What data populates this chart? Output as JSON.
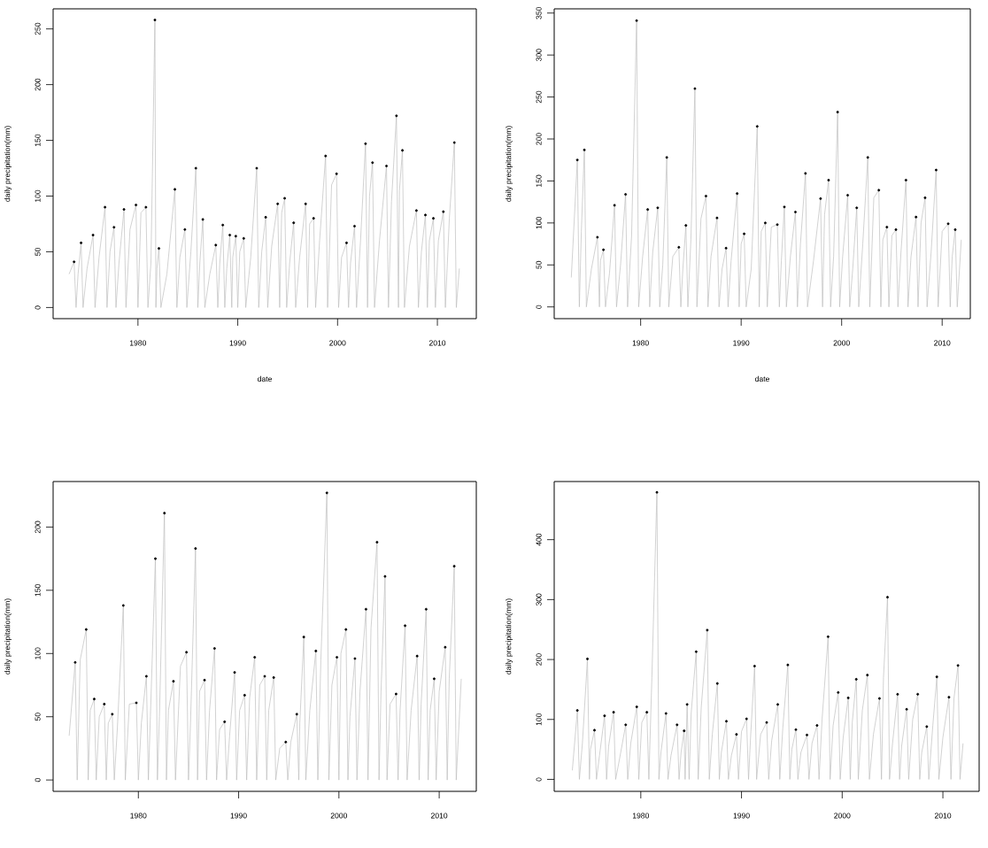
{
  "chart_data": [
    {
      "type": "line",
      "xlabel": "date",
      "ylabel": "daily precipitation(mm)",
      "xlim": [
        1971.5,
        2013.9
      ],
      "ylim": [
        -10,
        268
      ],
      "xticks": [
        1980,
        1990,
        2000,
        2010
      ],
      "yticks": [
        0,
        50,
        100,
        150,
        200,
        250
      ],
      "series": [
        {
          "color": "#bebebe",
          "x": [
            1973.1,
            1973.6,
            1973.8,
            1974.0,
            1974.3,
            1974.5,
            1974.9,
            1975.5,
            1975.7,
            1976.1,
            1976.7,
            1976.9,
            1977.2,
            1977.6,
            1977.8,
            1978.1,
            1978.6,
            1978.8,
            1979.2,
            1979.8,
            1980.0,
            1980.3,
            1980.8,
            1981.0,
            1981.3,
            1981.7,
            1981.8,
            1981.9,
            1982.1,
            1982.3,
            1982.9,
            1983.7,
            1983.9,
            1984.2,
            1984.7,
            1984.9,
            1985.3,
            1985.8,
            1986.0,
            1986.2,
            1986.5,
            1986.7,
            1987.2,
            1987.8,
            1988.0,
            1988.2,
            1988.5,
            1988.7,
            1988.9,
            1989.2,
            1989.4,
            1989.5,
            1989.8,
            1990.0,
            1990.2,
            1990.6,
            1990.8,
            1991.3,
            1991.9,
            1992.1,
            1992.4,
            1992.8,
            1993.0,
            1993.4,
            1994.0,
            1994.2,
            1994.4,
            1994.7,
            1994.9,
            1995.2,
            1995.6,
            1995.8,
            1996.2,
            1996.8,
            1997.0,
            1997.2,
            1997.6,
            1997.8,
            1998.2,
            1998.8,
            1999.0,
            1999.4,
            1999.9,
            2000.1,
            2000.4,
            2000.9,
            2001.1,
            2001.3,
            2001.7,
            2001.9,
            2002.3,
            2002.8,
            2003.0,
            2003.2,
            2003.5,
            2003.7,
            2004.2,
            2004.9,
            2005.1,
            2005.4,
            2005.9,
            2006.1,
            2006.2,
            2006.5,
            2006.7,
            2007.2,
            2007.9,
            2008.1,
            2008.4,
            2008.8,
            2009.0,
            2009.2,
            2009.6,
            2009.8,
            2010.1,
            2010.6,
            2010.8,
            2011.2,
            2011.7,
            2011.9,
            2012.2
          ],
          "values": [
            30,
            41,
            0,
            30,
            58,
            0,
            35,
            65,
            0,
            45,
            90,
            0,
            50,
            72,
            0,
            40,
            88,
            0,
            70,
            92,
            0,
            85,
            90,
            0,
            40,
            258,
            0,
            35,
            53,
            0,
            30,
            106,
            0,
            45,
            70,
            0,
            50,
            125,
            0,
            40,
            79,
            0,
            30,
            56,
            0,
            40,
            74,
            0,
            35,
            65,
            0,
            45,
            64,
            0,
            50,
            62,
            0,
            45,
            125,
            0,
            50,
            81,
            0,
            55,
            93,
            0,
            85,
            98,
            0,
            40,
            76,
            0,
            45,
            93,
            0,
            75,
            80,
            0,
            60,
            136,
            0,
            110,
            120,
            0,
            45,
            58,
            0,
            40,
            73,
            0,
            60,
            147,
            0,
            100,
            130,
            0,
            60,
            127,
            0,
            95,
            172,
            0,
            105,
            141,
            0,
            55,
            87,
            0,
            50,
            83,
            0,
            60,
            80,
            0,
            60,
            86,
            0,
            80,
            148,
            0,
            35
          ]
        },
        {
          "type": "scatter",
          "marker": "circle",
          "color": "#000000",
          "x": [
            1973.6,
            1974.3,
            1975.5,
            1976.7,
            1977.6,
            1978.6,
            1979.8,
            1980.8,
            1981.7,
            1982.1,
            1983.7,
            1984.7,
            1985.8,
            1986.5,
            1987.8,
            1988.5,
            1989.2,
            1989.8,
            1990.6,
            1991.9,
            1992.8,
            1994.0,
            1994.7,
            1995.6,
            1996.8,
            1997.6,
            1998.8,
            1999.9,
            2000.9,
            2001.7,
            2002.8,
            2003.5,
            2004.9,
            2005.9,
            2006.5,
            2007.9,
            2008.8,
            2009.6,
            2010.6,
            2011.7
          ],
          "values": [
            41,
            58,
            65,
            90,
            72,
            88,
            92,
            90,
            258,
            53,
            106,
            70,
            125,
            79,
            56,
            74,
            65,
            64,
            62,
            125,
            81,
            93,
            98,
            76,
            93,
            80,
            136,
            120,
            58,
            73,
            147,
            130,
            127,
            172,
            141,
            87,
            83,
            80,
            86,
            148
          ]
        }
      ]
    },
    {
      "type": "line",
      "xlabel": "date",
      "ylabel": "daily precipitation(mm)",
      "xlim": [
        1971.4,
        2012.8
      ],
      "ylim": [
        -14,
        355
      ],
      "xticks": [
        1980,
        1990,
        2000,
        2010
      ],
      "yticks": [
        0,
        50,
        100,
        150,
        200,
        250,
        300,
        350
      ],
      "series": [
        {
          "color": "#bebebe",
          "x": [
            1973.1,
            1973.7,
            1973.9,
            1974.1,
            1974.4,
            1974.6,
            1975.1,
            1975.7,
            1975.9,
            1976.0,
            1976.3,
            1976.5,
            1976.9,
            1977.4,
            1977.6,
            1978.0,
            1978.5,
            1978.7,
            1979.1,
            1979.6,
            1979.8,
            1980.2,
            1980.7,
            1980.9,
            1981.2,
            1981.7,
            1981.9,
            1982.2,
            1982.6,
            1982.8,
            1983.2,
            1983.8,
            1984.0,
            1984.2,
            1984.5,
            1984.7,
            1985.0,
            1985.4,
            1985.6,
            1986.0,
            1986.5,
            1986.7,
            1987.0,
            1987.6,
            1987.8,
            1988.1,
            1988.5,
            1988.7,
            1989.0,
            1989.6,
            1989.8,
            1990.0,
            1990.3,
            1990.5,
            1991.0,
            1991.6,
            1991.8,
            1992.0,
            1992.4,
            1992.6,
            1993.0,
            1993.6,
            1993.8,
            1994.0,
            1994.3,
            1994.5,
            1994.9,
            1995.4,
            1995.6,
            1995.9,
            1996.4,
            1996.6,
            1997.2,
            1997.9,
            1998.1,
            1998.3,
            1998.7,
            1998.9,
            1999.2,
            1999.6,
            1999.8,
            2000.1,
            2000.6,
            2000.8,
            2001.1,
            2001.5,
            2001.7,
            2002.1,
            2002.6,
            2002.8,
            2003.2,
            2003.7,
            2003.9,
            2004.1,
            2004.5,
            2004.7,
            2005.0,
            2005.4,
            2005.6,
            2005.9,
            2006.4,
            2006.6,
            2006.9,
            2007.4,
            2007.6,
            2007.9,
            2008.3,
            2008.5,
            2008.9,
            2009.4,
            2009.6,
            2010.0,
            2010.6,
            2010.8,
            2011.0,
            2011.3,
            2011.5,
            2011.9
          ],
          "values": [
            35,
            175,
            0,
            90,
            187,
            0,
            45,
            83,
            0,
            55,
            68,
            0,
            40,
            121,
            0,
            50,
            134,
            0,
            85,
            341,
            0,
            60,
            116,
            0,
            65,
            118,
            0,
            50,
            178,
            0,
            60,
            71,
            0,
            45,
            97,
            0,
            80,
            260,
            0,
            105,
            132,
            0,
            60,
            106,
            0,
            45,
            70,
            0,
            55,
            135,
            0,
            75,
            87,
            0,
            45,
            215,
            0,
            90,
            100,
            0,
            95,
            98,
            0,
            55,
            119,
            0,
            60,
            113,
            0,
            75,
            159,
            0,
            55,
            129,
            0,
            110,
            151,
            0,
            60,
            232,
            0,
            60,
            133,
            0,
            45,
            118,
            0,
            75,
            178,
            0,
            130,
            139,
            0,
            80,
            95,
            0,
            85,
            92,
            0,
            65,
            151,
            0,
            60,
            107,
            0,
            100,
            130,
            0,
            65,
            163,
            0,
            90,
            99,
            0,
            60,
            92,
            0,
            80
          ]
        },
        {
          "type": "scatter",
          "marker": "circle",
          "color": "#000000",
          "x": [
            1973.7,
            1974.4,
            1975.7,
            1976.3,
            1977.4,
            1978.5,
            1979.6,
            1980.7,
            1981.7,
            1982.6,
            1983.8,
            1984.5,
            1985.4,
            1986.5,
            1987.6,
            1988.5,
            1989.6,
            1990.3,
            1991.6,
            1992.4,
            1993.6,
            1994.3,
            1995.4,
            1996.4,
            1997.9,
            1998.7,
            1999.6,
            2000.6,
            2001.5,
            2002.6,
            2003.7,
            2004.5,
            2005.4,
            2006.4,
            2007.4,
            2008.3,
            2009.4,
            2010.6,
            2011.3
          ],
          "values": [
            175,
            187,
            83,
            68,
            121,
            134,
            341,
            116,
            118,
            178,
            71,
            97,
            260,
            132,
            106,
            70,
            135,
            87,
            215,
            100,
            98,
            119,
            113,
            159,
            129,
            151,
            232,
            133,
            118,
            178,
            139,
            95,
            92,
            151,
            107,
            130,
            163,
            99,
            92
          ]
        }
      ]
    },
    {
      "type": "line",
      "ylabel": "daily precipitation(mm)",
      "xlim": [
        1971.5,
        2013.7
      ],
      "ylim": [
        -9,
        236
      ],
      "xticks": [
        1980,
        1990,
        2000,
        2010
      ],
      "yticks": [
        0,
        50,
        100,
        150,
        200
      ],
      "series": [
        {
          "color": "#bebebe",
          "x": [
            1973.1,
            1973.7,
            1973.9,
            1974.2,
            1974.8,
            1975.0,
            1975.2,
            1975.6,
            1975.8,
            1976.1,
            1976.6,
            1976.8,
            1977.0,
            1977.4,
            1977.6,
            1977.9,
            1978.5,
            1978.7,
            1979.1,
            1979.8,
            1980.0,
            1980.3,
            1980.8,
            1981.0,
            1981.2,
            1981.7,
            1981.9,
            1982.1,
            1982.6,
            1982.8,
            1983.0,
            1983.5,
            1983.7,
            1984.2,
            1984.8,
            1985.0,
            1985.2,
            1985.7,
            1985.9,
            1986.1,
            1986.6,
            1986.8,
            1987.1,
            1987.6,
            1987.8,
            1988.1,
            1988.6,
            1988.8,
            1989.1,
            1989.6,
            1989.8,
            1990.1,
            1990.6,
            1990.8,
            1991.1,
            1991.6,
            1991.8,
            1992.1,
            1992.6,
            1992.8,
            1993.0,
            1993.5,
            1993.7,
            1994.1,
            1994.7,
            1994.9,
            1995.2,
            1995.8,
            1996.0,
            1996.1,
            1996.5,
            1996.7,
            1997.1,
            1997.7,
            1997.9,
            1998.2,
            1998.8,
            1999.0,
            1999.3,
            1999.8,
            2000.0,
            2000.2,
            2000.7,
            2000.9,
            2001.1,
            2001.6,
            2001.8,
            2002.1,
            2002.7,
            2002.9,
            2003.2,
            2003.8,
            2004.0,
            2004.2,
            2004.6,
            2004.8,
            2005.1,
            2005.7,
            2005.9,
            2006.1,
            2006.6,
            2006.8,
            2007.2,
            2007.8,
            2008.0,
            2008.2,
            2008.7,
            2008.9,
            2009.1,
            2009.5,
            2009.7,
            2010.0,
            2010.6,
            2010.8,
            2011.0,
            2011.5,
            2011.7,
            2012.2
          ],
          "values": [
            35,
            93,
            0,
            95,
            119,
            0,
            55,
            64,
            0,
            50,
            60,
            0,
            45,
            52,
            0,
            40,
            138,
            0,
            60,
            61,
            0,
            45,
            82,
            0,
            50,
            175,
            0,
            50,
            211,
            0,
            55,
            78,
            0,
            90,
            101,
            0,
            45,
            183,
            0,
            70,
            79,
            0,
            55,
            104,
            0,
            40,
            46,
            0,
            35,
            85,
            0,
            55,
            67,
            0,
            65,
            97,
            0,
            75,
            82,
            0,
            55,
            81,
            0,
            25,
            30,
            0,
            30,
            52,
            0,
            45,
            113,
            0,
            55,
            102,
            0,
            95,
            227,
            0,
            75,
            97,
            0,
            100,
            119,
            0,
            50,
            96,
            0,
            70,
            135,
            0,
            120,
            188,
            0,
            70,
            161,
            0,
            60,
            68,
            0,
            55,
            122,
            0,
            55,
            98,
            0,
            60,
            135,
            0,
            55,
            80,
            0,
            70,
            105,
            0,
            80,
            169,
            0,
            80
          ]
        },
        {
          "type": "scatter",
          "marker": "circle",
          "color": "#000000",
          "x": [
            1973.7,
            1974.8,
            1975.6,
            1976.6,
            1977.4,
            1978.5,
            1979.8,
            1980.8,
            1981.7,
            1982.6,
            1983.5,
            1984.8,
            1985.7,
            1986.6,
            1987.6,
            1988.6,
            1989.6,
            1990.6,
            1991.6,
            1992.6,
            1993.5,
            1994.7,
            1995.8,
            1996.5,
            1997.7,
            1998.8,
            1999.8,
            2000.7,
            2001.6,
            2002.7,
            2003.8,
            2004.6,
            2005.7,
            2006.6,
            2007.8,
            2008.7,
            2009.5,
            2010.6,
            2011.5
          ],
          "values": [
            93,
            119,
            64,
            60,
            52,
            138,
            61,
            82,
            175,
            211,
            78,
            101,
            183,
            79,
            104,
            46,
            85,
            67,
            97,
            82,
            81,
            30,
            52,
            113,
            102,
            227,
            97,
            119,
            96,
            135,
            188,
            161,
            68,
            122,
            98,
            135,
            80,
            105,
            169
          ]
        }
      ]
    },
    {
      "type": "line",
      "ylabel": "daily precipitation(mm)",
      "xlim": [
        1971.4,
        2013.6
      ],
      "ylim": [
        -20,
        497
      ],
      "xticks": [
        1980,
        1990,
        2000,
        2010
      ],
      "yticks": [
        0,
        100,
        200,
        300,
        400
      ],
      "series": [
        {
          "color": "#bebebe",
          "x": [
            1973.2,
            1973.7,
            1973.9,
            1974.2,
            1974.7,
            1974.9,
            1975.0,
            1975.4,
            1975.6,
            1975.9,
            1976.4,
            1976.6,
            1976.8,
            1977.3,
            1977.5,
            1977.9,
            1978.5,
            1978.7,
            1979.0,
            1979.6,
            1979.8,
            1980.1,
            1980.6,
            1980.8,
            1981.1,
            1981.6,
            1981.8,
            1982.0,
            1982.5,
            1982.7,
            1983.0,
            1983.6,
            1983.8,
            1984.0,
            1984.3,
            1984.4,
            1984.5,
            1984.6,
            1984.8,
            1985.0,
            1985.5,
            1985.7,
            1986.0,
            1986.6,
            1986.8,
            1987.1,
            1987.6,
            1987.8,
            1988.0,
            1988.5,
            1988.7,
            1989.0,
            1989.5,
            1989.7,
            1990.0,
            1990.5,
            1990.7,
            1990.9,
            1991.3,
            1991.5,
            1991.9,
            1992.5,
            1992.7,
            1993.0,
            1993.6,
            1993.8,
            1994.1,
            1994.6,
            1994.8,
            1995.0,
            1995.4,
            1995.6,
            1995.9,
            1996.5,
            1996.7,
            1997.0,
            1997.5,
            1997.7,
            1998.0,
            1998.6,
            1998.8,
            1999.1,
            1999.6,
            1999.8,
            2000.1,
            2000.6,
            2000.8,
            2001.0,
            2001.4,
            2001.6,
            2002.0,
            2002.5,
            2002.7,
            2003.1,
            2003.7,
            2003.9,
            2004.1,
            2004.5,
            2004.7,
            2005.0,
            2005.5,
            2005.7,
            2005.9,
            2006.4,
            2006.6,
            2007.0,
            2007.5,
            2007.7,
            2007.9,
            2008.4,
            2008.6,
            2009.0,
            2009.4,
            2009.6,
            2010.0,
            2010.6,
            2010.8,
            2011.1,
            2011.5,
            2011.7,
            2012.0
          ],
          "values": [
            15,
            115,
            0,
            60,
            201,
            0,
            50,
            82,
            0,
            40,
            106,
            0,
            55,
            112,
            0,
            35,
            91,
            0,
            60,
            121,
            0,
            95,
            112,
            0,
            170,
            479,
            0,
            45,
            110,
            0,
            40,
            91,
            0,
            45,
            81,
            0,
            60,
            125,
            0,
            110,
            213,
            0,
            120,
            249,
            0,
            75,
            160,
            0,
            45,
            97,
            0,
            40,
            75,
            0,
            80,
            101,
            0,
            70,
            189,
            0,
            75,
            95,
            0,
            65,
            125,
            0,
            85,
            191,
            0,
            50,
            83,
            0,
            45,
            74,
            0,
            60,
            90,
            0,
            100,
            238,
            0,
            90,
            145,
            0,
            70,
            136,
            0,
            95,
            167,
            0,
            115,
            174,
            0,
            75,
            135,
            0,
            170,
            304,
            0,
            60,
            142,
            0,
            55,
            117,
            0,
            100,
            142,
            0,
            45,
            88,
            0,
            90,
            171,
            0,
            70,
            137,
            0,
            135,
            190,
            0,
            60
          ]
        },
        {
          "type": "scatter",
          "marker": "circle",
          "color": "#000000",
          "x": [
            1973.7,
            1974.7,
            1975.4,
            1976.4,
            1977.3,
            1978.5,
            1979.6,
            1980.6,
            1981.6,
            1982.5,
            1983.6,
            1984.3,
            1984.6,
            1985.5,
            1986.6,
            1987.6,
            1988.5,
            1989.5,
            1990.5,
            1991.3,
            1992.5,
            1993.6,
            1994.6,
            1995.4,
            1996.5,
            1997.5,
            1998.6,
            1999.6,
            2000.6,
            2001.4,
            2002.5,
            2003.7,
            2004.5,
            2005.5,
            2006.4,
            2007.5,
            2008.4,
            2009.4,
            2010.6,
            2011.5
          ],
          "values": [
            115,
            201,
            82,
            106,
            112,
            91,
            121,
            112,
            479,
            110,
            91,
            81,
            125,
            213,
            249,
            160,
            97,
            75,
            101,
            189,
            95,
            125,
            191,
            83,
            74,
            90,
            238,
            145,
            136,
            167,
            174,
            135,
            304,
            142,
            117,
            142,
            88,
            171,
            137,
            190
          ]
        }
      ]
    }
  ]
}
